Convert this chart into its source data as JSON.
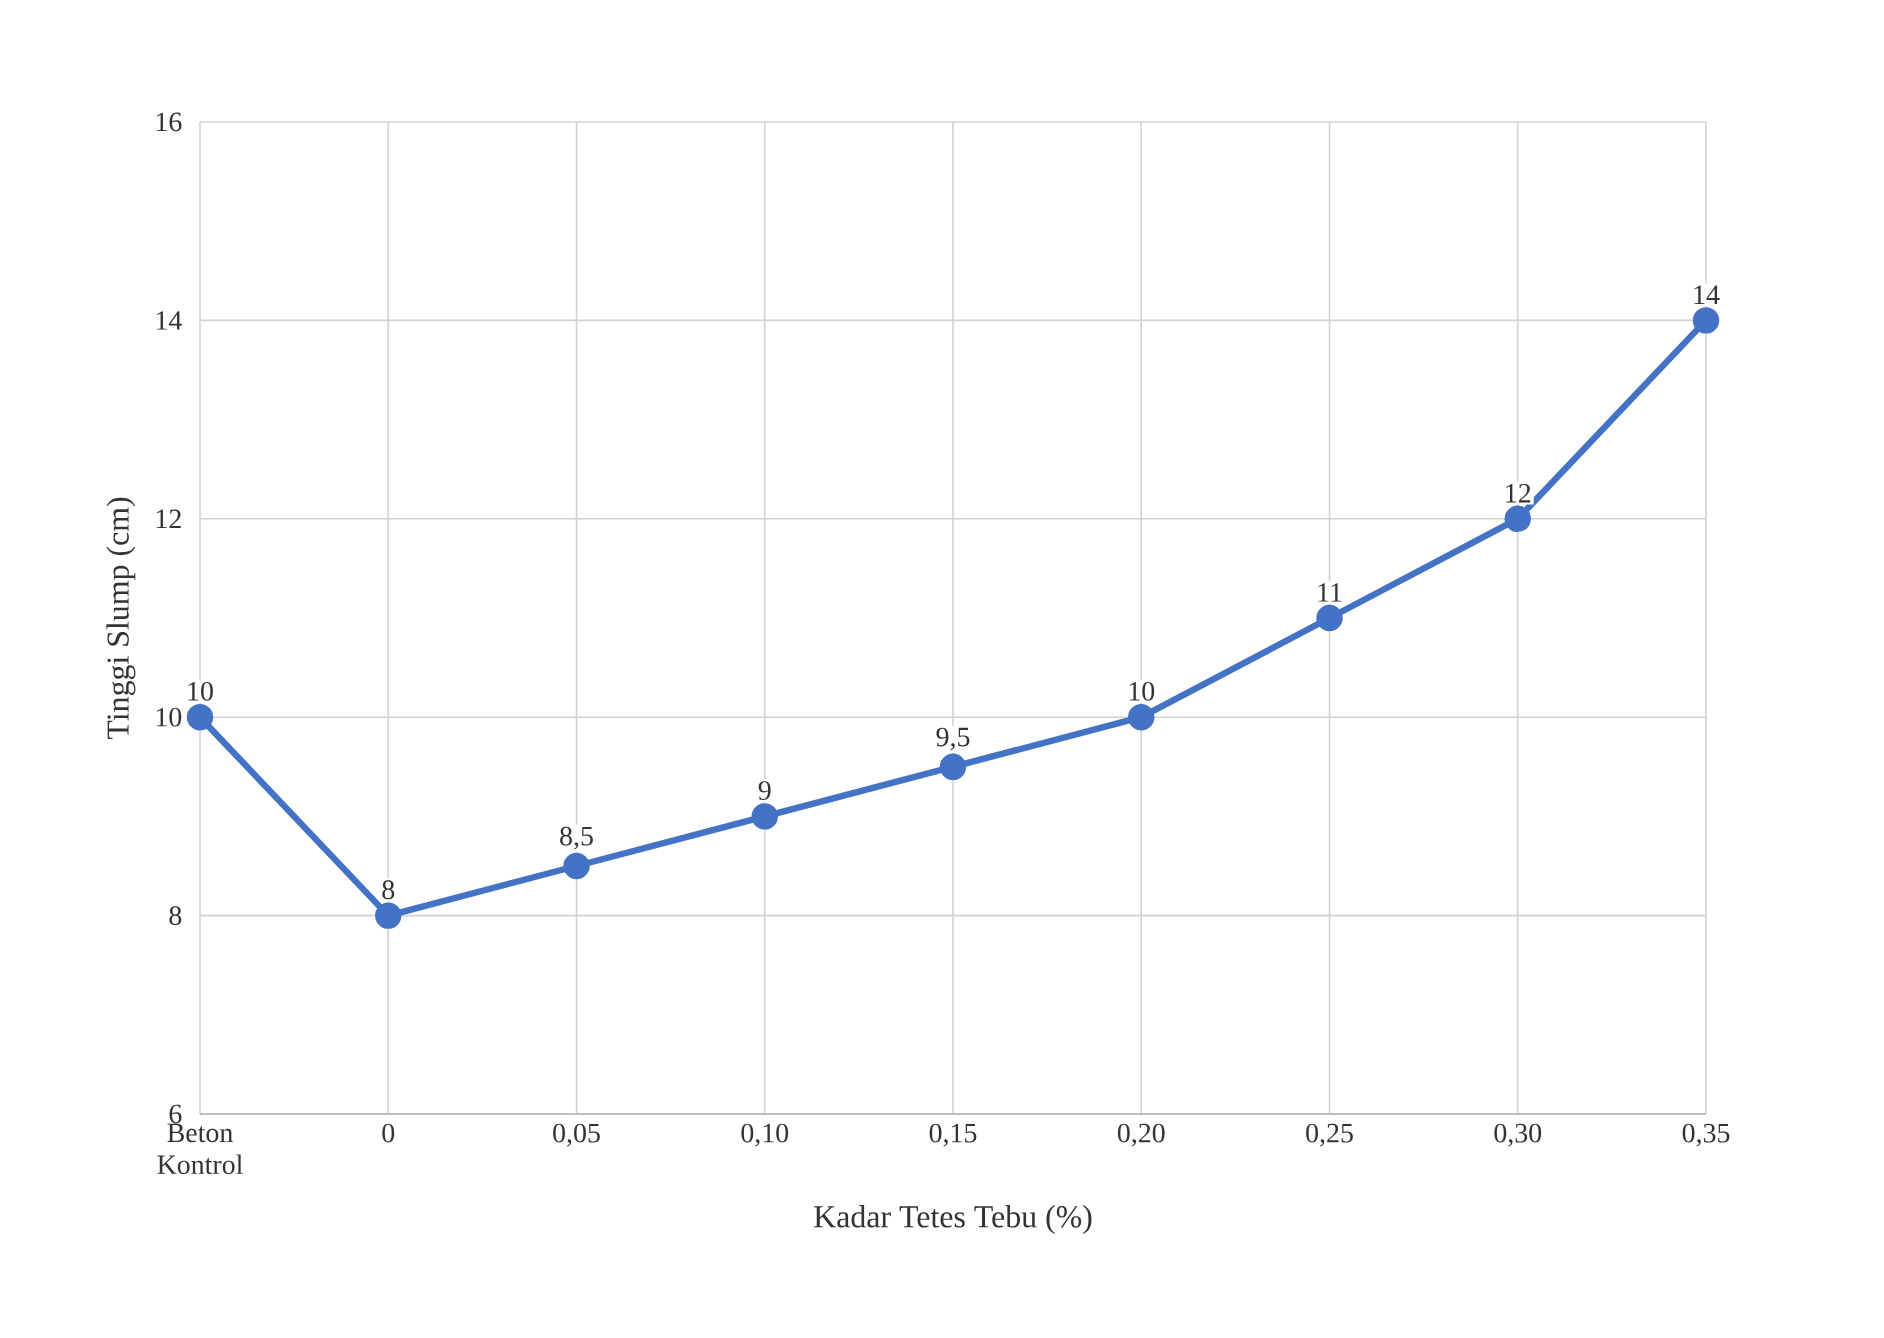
{
  "chart_data": {
    "type": "line",
    "xlabel": "Kadar Tetes Tebu (%)",
    "ylabel": "Tinggi Slump (cm)",
    "categories": [
      "Beton Kontrol",
      "0",
      "0,05",
      "0,10",
      "0,15",
      "0,20",
      "0,25",
      "0,30",
      "0,35"
    ],
    "values": [
      10,
      8,
      8.5,
      9,
      9.5,
      10,
      11,
      12,
      14
    ],
    "value_labels": [
      "10",
      "8",
      "8,5",
      "9",
      "9,5",
      "10",
      "11",
      "12",
      "14"
    ],
    "color": "#4472c4",
    "ylim": [
      6,
      16
    ],
    "yticks": [
      6,
      8,
      10,
      12,
      14,
      16
    ],
    "grid": true,
    "marker": "circle",
    "line_style": "solid"
  }
}
